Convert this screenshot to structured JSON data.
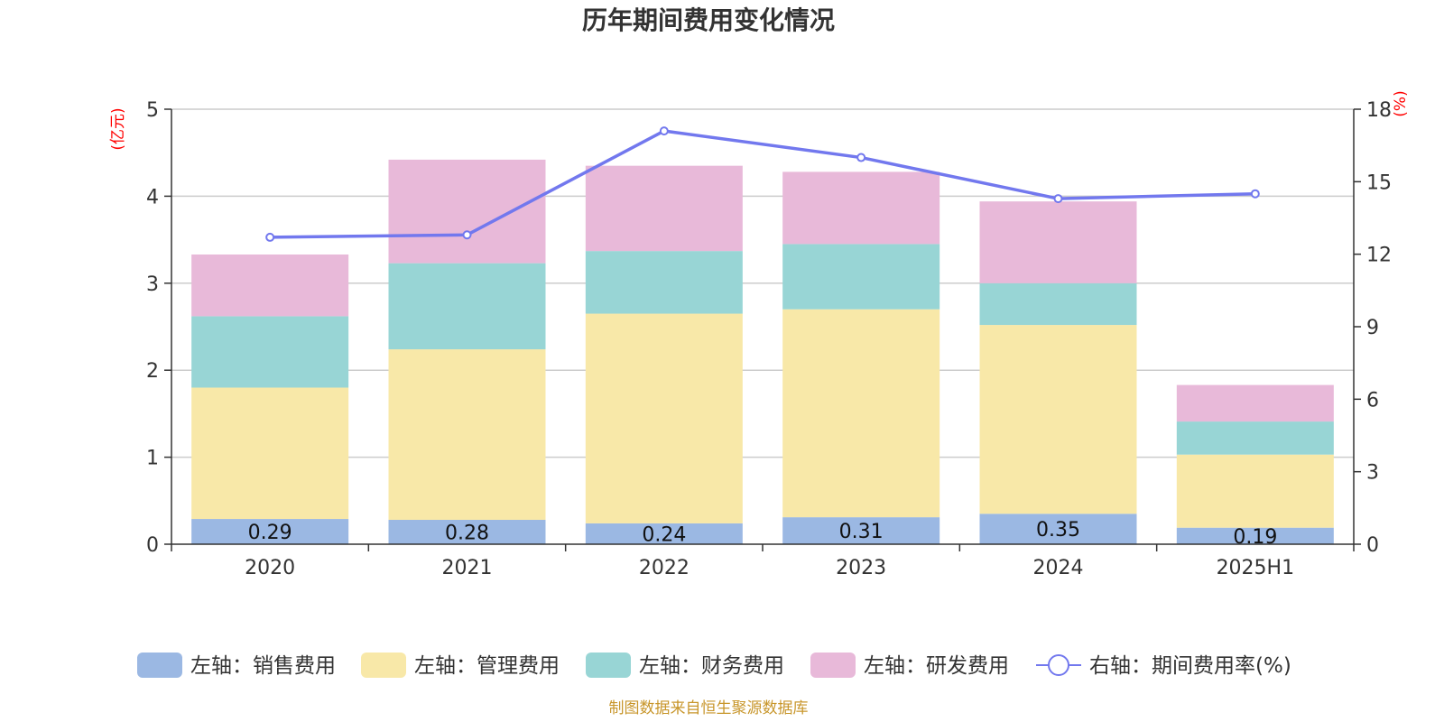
{
  "chart_data": {
    "type": "bar",
    "stacked": true,
    "title": "历年期间费用变化情况",
    "categories": [
      "2020",
      "2021",
      "2022",
      "2023",
      "2024",
      "2025H1"
    ],
    "left_axis": {
      "unit": "(亿元)",
      "range": [
        0,
        5
      ],
      "ticks": [
        "0",
        "1",
        "2",
        "3",
        "4",
        "5"
      ]
    },
    "right_axis": {
      "unit": "(%)",
      "range": [
        0,
        18
      ],
      "ticks": [
        "0",
        "3",
        "6",
        "9",
        "12",
        "15",
        "18"
      ]
    },
    "series": [
      {
        "name": "左轴：销售费用",
        "axis": "left",
        "color": "#9bb8e3",
        "values": [
          0.29,
          0.28,
          0.24,
          0.31,
          0.35,
          0.19
        ],
        "labels": [
          "0.29",
          "0.28",
          "0.24",
          "0.31",
          "0.35",
          "0.19"
        ]
      },
      {
        "name": "左轴：管理费用",
        "axis": "left",
        "color": "#f8e8a8",
        "values": [
          1.51,
          1.96,
          2.41,
          2.39,
          2.17,
          0.84
        ]
      },
      {
        "name": "左轴：财务费用",
        "axis": "left",
        "color": "#98d5d5",
        "values": [
          0.82,
          0.99,
          0.72,
          0.75,
          0.48,
          0.38
        ]
      },
      {
        "name": "左轴：研发费用",
        "axis": "left",
        "color": "#e8b9d9",
        "values": [
          0.71,
          1.19,
          0.98,
          0.83,
          0.94,
          0.42
        ]
      },
      {
        "name": "右轴：期间费用率(%)",
        "axis": "right",
        "type": "line",
        "color": "#7278ee",
        "values": [
          12.7,
          12.8,
          17.1,
          16.0,
          14.3,
          14.5
        ]
      }
    ],
    "grid": true,
    "legend_position": "bottom",
    "source": "制图数据来自恒生聚源数据库"
  }
}
